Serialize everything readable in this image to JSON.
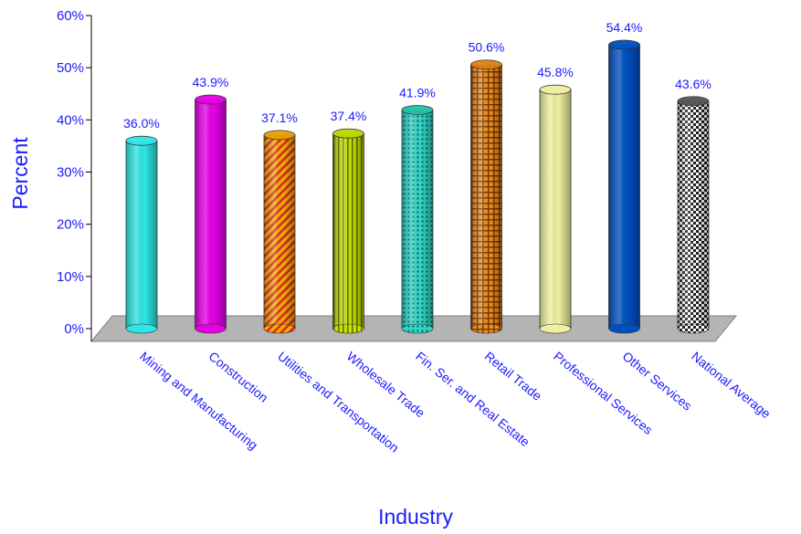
{
  "chart_data": {
    "type": "bar",
    "categories": [
      "Mining and Manufacturing",
      "Construction",
      "Utilities and Transportation",
      "Wholesale Trade",
      "Fin. Ser. and Real Estate",
      "Retail Trade",
      "Professional Services",
      "Other Services",
      "National Average"
    ],
    "values": [
      36.0,
      43.9,
      37.1,
      37.4,
      41.9,
      50.6,
      45.8,
      54.4,
      43.6
    ],
    "value_labels": [
      "36.0%",
      "43.9%",
      "37.1%",
      "37.4%",
      "41.9%",
      "50.6%",
      "45.8%",
      "54.4%",
      "43.6%"
    ],
    "bar_colors": [
      "#2ee6e6",
      "#e600e6",
      "#e6a000",
      "#b8d800",
      "#20c0a8",
      "#e08010",
      "#f0f0a0",
      "#0050c0",
      "#555555"
    ],
    "title": "",
    "xlabel": "Industry",
    "ylabel": "Percent",
    "ylim": [
      0,
      60
    ],
    "yticks": [
      "0%",
      "10%",
      "20%",
      "30%",
      "40%",
      "50%",
      "60%"
    ],
    "grid": false,
    "style": "3d-cylinder"
  }
}
